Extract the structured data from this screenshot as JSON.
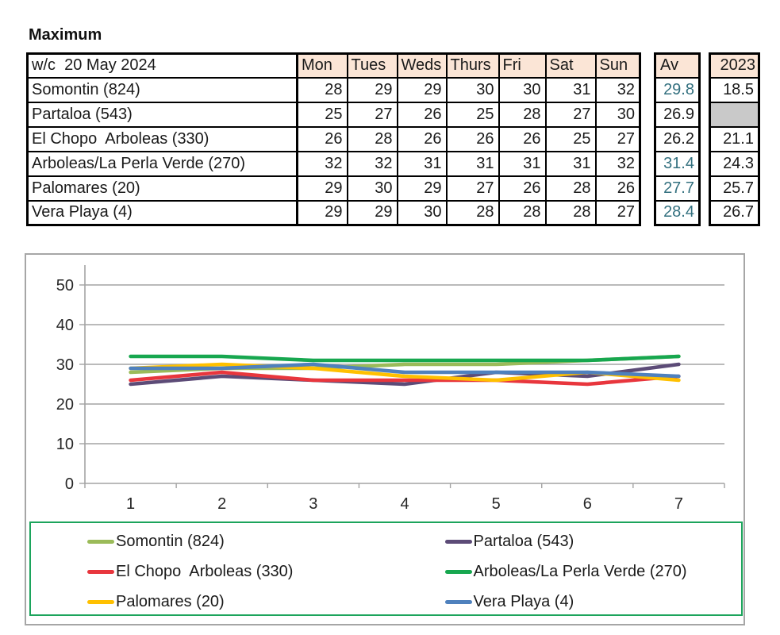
{
  "title": "Maximum",
  "colors": {
    "header_fill": "#FBE5D6",
    "empty_cell_fill": "#C9C9C9",
    "av_accent": "#33707F",
    "chart_border": "#A6A6A6",
    "gridline": "#A3A3A3",
    "axis_text": "#262626",
    "legend_border": "#1CA45C"
  },
  "table": {
    "corner_label": "w/c  20 May 2024",
    "day_headers": [
      "Mon",
      "Tues",
      "Weds",
      "Thurs",
      "Fri",
      "Sat",
      "Sun"
    ],
    "av_header": "Av",
    "prev_header": "2023",
    "rows": [
      {
        "label": "Somontin (824)",
        "values": [
          28,
          29,
          29,
          30,
          30,
          31,
          32
        ],
        "av": "29.8",
        "av_teal": true,
        "prev": "18.5"
      },
      {
        "label": "Partaloa (543)",
        "values": [
          25,
          27,
          26,
          25,
          28,
          27,
          30
        ],
        "av": "26.9",
        "av_teal": false,
        "prev": null
      },
      {
        "label": "El Chopo  Arboleas (330)",
        "values": [
          26,
          28,
          26,
          26,
          26,
          25,
          27
        ],
        "av": "26.2",
        "av_teal": false,
        "prev": "21.1"
      },
      {
        "label": "Arboleas/La Perla Verde (270)",
        "values": [
          32,
          32,
          31,
          31,
          31,
          31,
          32
        ],
        "av": "31.4",
        "av_teal": true,
        "prev": "24.3"
      },
      {
        "label": "Palomares (20)",
        "values": [
          29,
          30,
          29,
          27,
          26,
          28,
          26
        ],
        "av": "27.7",
        "av_teal": true,
        "prev": "25.7"
      },
      {
        "label": "Vera Playa (4)",
        "values": [
          29,
          29,
          30,
          28,
          28,
          28,
          27
        ],
        "av": "28.4",
        "av_teal": true,
        "prev": "26.7"
      }
    ]
  },
  "chart_data": {
    "type": "line",
    "x": [
      1,
      2,
      3,
      4,
      5,
      6,
      7
    ],
    "xticklabels": [
      "1",
      "2",
      "3",
      "4",
      "5",
      "6",
      "7"
    ],
    "series": [
      {
        "name": "Somontin (824)",
        "color": "#9BBB59",
        "values": [
          28,
          29,
          29,
          30,
          30,
          31,
          32
        ]
      },
      {
        "name": "Partaloa (543)",
        "color": "#5C4B77",
        "values": [
          25,
          27,
          26,
          25,
          28,
          27,
          30
        ]
      },
      {
        "name": "El Chopo  Arboleas (330)",
        "color": "#E8363D",
        "values": [
          26,
          28,
          26,
          26,
          26,
          25,
          27
        ]
      },
      {
        "name": "Arboleas/La Perla Verde (270)",
        "color": "#17A74F",
        "values": [
          32,
          32,
          31,
          31,
          31,
          31,
          32
        ]
      },
      {
        "name": "Palomares (20)",
        "color": "#FFC000",
        "values": [
          29,
          30,
          29,
          27,
          26,
          28,
          26
        ]
      },
      {
        "name": "Vera Playa (4)",
        "color": "#4F81BD",
        "values": [
          29,
          29,
          30,
          28,
          28,
          28,
          27
        ]
      }
    ],
    "title": "",
    "xlabel": "",
    "ylabel": "",
    "ylim": [
      0,
      55
    ],
    "yticks": [
      0,
      10,
      20,
      30,
      40,
      50
    ],
    "grid": true,
    "legend_position": "bottom"
  },
  "legend": {
    "items": [
      {
        "label": "Somontin (824)",
        "color": "#9BBB59"
      },
      {
        "label": "Partaloa (543)",
        "color": "#5C4B77"
      },
      {
        "label": "El Chopo  Arboleas (330)",
        "color": "#E8363D"
      },
      {
        "label": "Arboleas/La Perla Verde (270)",
        "color": "#17A74F"
      },
      {
        "label": "Palomares (20)",
        "color": "#FFC000"
      },
      {
        "label": "Vera Playa (4)",
        "color": "#4F81BD"
      }
    ]
  }
}
